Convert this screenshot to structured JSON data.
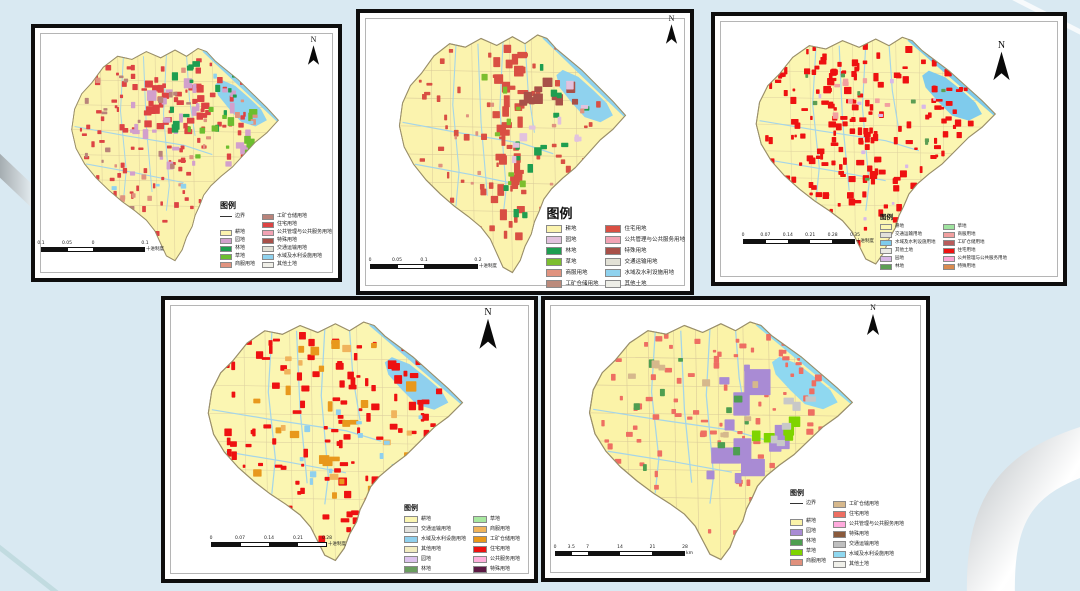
{
  "page": {
    "background": "#d9e9f2",
    "decor": {
      "tube_light": "#ffffff",
      "tube_shade": "#d8d8d8",
      "ribbon_dark": "#9a9a9a",
      "ribbon_light": "#eef2f4",
      "corner_line": "#cde2e4"
    }
  },
  "maps": [
    {
      "id": "map1",
      "north_label": "N",
      "map_colors": {
        "base": "#FBF3AE",
        "water": "#8FD2EE",
        "grid": "#d8c898",
        "stroke": "#9a8f6a"
      },
      "legend": {
        "title": "图例",
        "boundary": {
          "label": "边界"
        },
        "left_items": [
          {
            "label": "耕地",
            "color": "#FBF3AE"
          },
          {
            "label": "园地",
            "color": "#D2A0CC"
          },
          {
            "label": "林地",
            "color": "#1E9E50"
          },
          {
            "label": "草地",
            "color": "#6CBE2F"
          },
          {
            "label": "商服用地",
            "color": "#E0937F"
          }
        ],
        "right_items": [
          {
            "label": "工矿仓储用地",
            "color": "#B9837A"
          },
          {
            "label": "住宅用地",
            "color": "#DD4343"
          },
          {
            "label": "公共管理与公共服务用地",
            "color": "#F2A3B4"
          },
          {
            "label": "特殊用地",
            "color": "#A85048"
          },
          {
            "label": "交通运输用地",
            "color": "#E2E1D6"
          },
          {
            "label": "水域及水利设施用地",
            "color": "#8FD2EE"
          },
          {
            "label": "其他土地",
            "color": "#F0EFE8"
          }
        ]
      },
      "scalebar": {
        "labels": [
          "0.1",
          "0.05",
          "0",
          "0.1"
        ],
        "positions": [
          0,
          0.25,
          0.5,
          1
        ],
        "unit": "十进制度"
      },
      "patches": [
        {
          "color": "#DD4343",
          "count": 120,
          "size": [
            1.5,
            4
          ],
          "area": [
            25,
            10,
            140,
            128
          ]
        },
        {
          "color": "#DD4343",
          "count": 28,
          "size": [
            3,
            6
          ],
          "area": [
            70,
            28,
            112,
            62
          ]
        },
        {
          "color": "#D2A0CC",
          "count": 30,
          "size": [
            2,
            7
          ],
          "area": [
            60,
            25,
            150,
            95
          ]
        },
        {
          "color": "#1E9E50",
          "count": 16,
          "size": [
            2,
            6
          ],
          "area": [
            88,
            16,
            138,
            58
          ]
        },
        {
          "color": "#6CBE2F",
          "count": 14,
          "size": [
            2,
            6
          ],
          "area": [
            100,
            40,
            150,
            76
          ]
        },
        {
          "color": "#E0937F",
          "count": 24,
          "size": [
            1.5,
            4
          ],
          "area": [
            30,
            20,
            148,
            118
          ]
        },
        {
          "color": "#B9837A",
          "count": 20,
          "size": [
            1.5,
            4
          ],
          "area": [
            25,
            25,
            100,
            110
          ]
        },
        {
          "color": "#8FD2EE",
          "count": 12,
          "size": [
            1.5,
            4
          ],
          "area": [
            25,
            20,
            150,
            118
          ]
        }
      ]
    },
    {
      "id": "map2",
      "north_label": "N",
      "map_colors": {
        "base": "#FBF3AE",
        "water": "#8FD2EE",
        "grid": "#d8c898",
        "stroke": "#9a8f6a"
      },
      "legend": {
        "title": "图例",
        "boundary": null,
        "left_items": [
          {
            "label": "耕地",
            "color": "#FBF3AE"
          },
          {
            "label": "园地",
            "color": "#E2C2DE"
          },
          {
            "label": "林地",
            "color": "#1E9E50"
          },
          {
            "label": "草地",
            "color": "#7CBE2F"
          },
          {
            "label": "商服用地",
            "color": "#E0937F"
          },
          {
            "label": "工矿仓储用地",
            "color": "#BB8A7B"
          }
        ],
        "right_items": [
          {
            "label": "住宅用地",
            "color": "#D94F43"
          },
          {
            "label": "公共管理与公共服务用地",
            "color": "#F2A3B4"
          },
          {
            "label": "特殊用地",
            "color": "#A85048"
          },
          {
            "label": "交通运输用地",
            "color": "#E2E1D6"
          },
          {
            "label": "水域及水利设施用地",
            "color": "#8FD2EE"
          },
          {
            "label": "其他土地",
            "color": "#EDEDE6"
          }
        ]
      },
      "scalebar": {
        "labels": [
          "0",
          "0.05",
          "0.1",
          "0.2"
        ],
        "positions": [
          0,
          0.25,
          0.5,
          1
        ],
        "unit": "十进制度"
      },
      "patches": [
        {
          "color": "#D94F43",
          "count": 42,
          "size": [
            2,
            7
          ],
          "area": [
            78,
            8,
            96,
            122
          ]
        },
        {
          "color": "#D94F43",
          "count": 60,
          "size": [
            1.5,
            4
          ],
          "area": [
            25,
            10,
            150,
            122
          ]
        },
        {
          "color": "#A85048",
          "count": 10,
          "size": [
            3,
            7
          ],
          "area": [
            95,
            28,
            132,
            60
          ]
        },
        {
          "color": "#1E9E50",
          "count": 14,
          "size": [
            2,
            5
          ],
          "area": [
            70,
            20,
            140,
            110
          ]
        },
        {
          "color": "#E2C2DE",
          "count": 10,
          "size": [
            2,
            5
          ],
          "area": [
            90,
            30,
            150,
            92
          ]
        },
        {
          "color": "#7CBE2F",
          "count": 8,
          "size": [
            2,
            4
          ],
          "area": [
            70,
            30,
            120,
            110
          ]
        },
        {
          "color": "#E0937F",
          "count": 10,
          "size": [
            1.5,
            3
          ],
          "area": [
            30,
            30,
            140,
            110
          ]
        }
      ]
    },
    {
      "id": "map3",
      "north_label": "N",
      "map_colors": {
        "base": "#FBF6B2",
        "water": "#7FCBEC",
        "grid": "#ddd0a0",
        "stroke": "#9a8f6a"
      },
      "legend": {
        "title": "图例",
        "boundary": null,
        "left_items": [
          {
            "label": "耕地",
            "color": "#FBF6B2"
          },
          {
            "label": "交通运输用地",
            "color": "#E2E1DA"
          },
          {
            "label": "水域及水利设施用地",
            "color": "#7FCBEC"
          },
          {
            "label": "其他土地",
            "color": "#EAEAE4"
          },
          {
            "label": "园地",
            "color": "#D8B8E8"
          },
          {
            "label": "林地",
            "color": "#5C9E54"
          }
        ],
        "right_items": [
          {
            "label": "草地",
            "color": "#9FE39F"
          },
          {
            "label": "商服用地",
            "color": "#F2A0A0"
          },
          {
            "label": "工矿仓储用地",
            "color": "#B85C5C"
          },
          {
            "label": "住宅用地",
            "color": "#EE1111"
          },
          {
            "label": "公共管理与公共服务用地",
            "color": "#FBA6D5"
          },
          {
            "label": "特殊用地",
            "color": "#D98A4E"
          }
        ]
      },
      "scalebar": {
        "labels": [
          "0",
          "0.07",
          "0.14",
          "0.21",
          "0.28",
          "0.35"
        ],
        "positions": [
          0,
          0.2,
          0.4,
          0.6,
          0.8,
          1
        ],
        "unit": "十进制度"
      },
      "patches": [
        {
          "color": "#EE1111",
          "count": 200,
          "size": [
            1.5,
            4.5
          ],
          "area": [
            25,
            10,
            150,
            135
          ]
        },
        {
          "color": "#EE1111",
          "count": 45,
          "size": [
            2,
            5
          ],
          "area": [
            55,
            18,
            95,
            92
          ]
        },
        {
          "color": "#D8B8E8",
          "count": 12,
          "size": [
            1.5,
            3
          ],
          "area": [
            30,
            30,
            140,
            120
          ]
        },
        {
          "color": "#5C9E54",
          "count": 10,
          "size": [
            1.5,
            3
          ],
          "area": [
            30,
            20,
            140,
            110
          ]
        },
        {
          "color": "#F2A0A0",
          "count": 8,
          "size": [
            2,
            4
          ],
          "area": [
            60,
            28,
            100,
            60
          ]
        }
      ]
    },
    {
      "id": "map4",
      "north_label": "N",
      "map_colors": {
        "base": "#FBF6B2",
        "water": "#8FD0EE",
        "grid": "#ddd0a0",
        "stroke": "#9a8f6a"
      },
      "legend": {
        "title": "图例",
        "boundary": null,
        "left_items": [
          {
            "label": "耕地",
            "color": "#FBF6B2"
          },
          {
            "label": "交通运输用地",
            "color": "#E2E1DC"
          },
          {
            "label": "水域及水利设施用地",
            "color": "#8FD0EE"
          },
          {
            "label": "其他用地",
            "color": "#F2ECC0"
          },
          {
            "label": "园地",
            "color": "#DCC2EE"
          },
          {
            "label": "林地",
            "color": "#6A9E5F"
          }
        ],
        "right_items": [
          {
            "label": "草地",
            "color": "#A8E8A0"
          },
          {
            "label": "商服用地",
            "color": "#F0B45C"
          },
          {
            "label": "工矿仓储用地",
            "color": "#E8981C"
          },
          {
            "label": "住宅用地",
            "color": "#EE1111"
          },
          {
            "label": "公共服务用地",
            "color": "#FFB0DC"
          },
          {
            "label": "特殊用地",
            "color": "#5C1A44"
          }
        ]
      },
      "scalebar": {
        "labels": [
          "0",
          "0.07",
          "0.14",
          "0.21",
          "0.28"
        ],
        "positions": [
          0,
          0.25,
          0.5,
          0.75,
          1
        ],
        "unit": "十进制度"
      },
      "patches": [
        {
          "color": "#EE1111",
          "count": 170,
          "size": [
            1.5,
            5
          ],
          "area": [
            25,
            10,
            150,
            135
          ]
        },
        {
          "color": "#EE1111",
          "count": 20,
          "size": [
            2,
            5
          ],
          "area": [
            95,
            112,
            130,
            140
          ]
        },
        {
          "color": "#E8981C",
          "count": 26,
          "size": [
            2.5,
            6
          ],
          "area": [
            35,
            15,
            140,
            110
          ]
        },
        {
          "color": "#F0B45C",
          "count": 12,
          "size": [
            2,
            5
          ],
          "area": [
            60,
            20,
            140,
            100
          ]
        },
        {
          "color": "#8FD0EE",
          "count": 14,
          "size": [
            1.5,
            4
          ],
          "area": [
            60,
            30,
            150,
            110
          ]
        }
      ]
    },
    {
      "id": "map5",
      "north_label": "N",
      "map_colors": {
        "base": "#FBF3A8",
        "water": "#8FD8F0",
        "grid": "#d8c898",
        "stroke": "#9a8f6a"
      },
      "legend": {
        "title": "图例",
        "boundary": {
          "label": "边界"
        },
        "left_items": [
          {
            "label": "耕地",
            "color": "#FBF3A8"
          },
          {
            "label": "园地",
            "color": "#A98BD4"
          },
          {
            "label": "林地",
            "color": "#4E9E50"
          },
          {
            "label": "草地",
            "color": "#7FD400"
          },
          {
            "label": "商服用地",
            "color": "#E0907C"
          }
        ],
        "right_items": [
          {
            "label": "工矿仓储用地",
            "color": "#D6B88C"
          },
          {
            "label": "住宅用地",
            "color": "#EE6E62"
          },
          {
            "label": "公共管理与公共服务用地",
            "color": "#FFAADD"
          },
          {
            "label": "特殊用地",
            "color": "#8A5A3C"
          },
          {
            "label": "交通运输用地",
            "color": "#BFBFBF"
          },
          {
            "label": "水域及水利设施用地",
            "color": "#8FD8F0"
          },
          {
            "label": "其他土地",
            "color": "#F0F0EA"
          }
        ]
      },
      "scalebar": {
        "labels": [
          "0",
          "3.5",
          "7",
          "14",
          "21",
          "28"
        ],
        "positions": [
          0,
          0.125,
          0.25,
          0.5,
          0.75,
          1
        ],
        "unit": "km"
      },
      "patches": [
        {
          "color": "#EE6E62",
          "count": 110,
          "size": [
            1.5,
            4
          ],
          "area": [
            25,
            10,
            150,
            130
          ]
        },
        {
          "color": "#A98BD4",
          "count": 6,
          "size": [
            8,
            16
          ],
          "area": [
            85,
            35,
            122,
            105
          ]
        },
        {
          "color": "#A98BD4",
          "count": 6,
          "size": [
            3,
            7
          ],
          "area": [
            80,
            30,
            130,
            100
          ]
        },
        {
          "color": "#4E9E50",
          "count": 10,
          "size": [
            2,
            5
          ],
          "area": [
            35,
            28,
            110,
            90
          ]
        },
        {
          "color": "#7FD400",
          "count": 5,
          "size": [
            4,
            7
          ],
          "area": [
            100,
            45,
            135,
            80
          ]
        },
        {
          "color": "#D6B88C",
          "count": 8,
          "size": [
            2,
            5
          ],
          "area": [
            40,
            30,
            120,
            90
          ]
        },
        {
          "color": "#C8C8C8",
          "count": 6,
          "size": [
            3,
            6
          ],
          "area": [
            110,
            50,
            142,
            82
          ]
        }
      ]
    }
  ]
}
